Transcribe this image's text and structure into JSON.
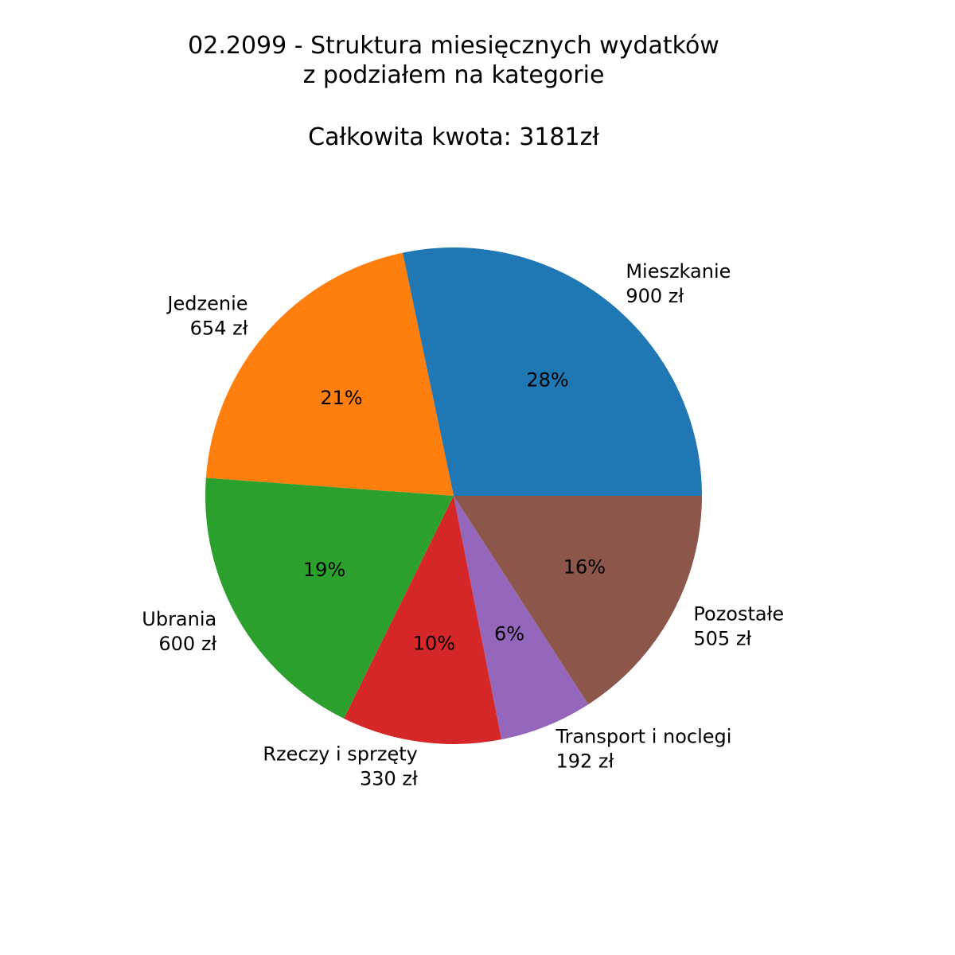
{
  "chart_data": {
    "type": "pie",
    "title_lines": [
      "02.2099 - Struktura miesięcznych wydatków",
      "z podziałem na kategorie",
      "",
      "Całkowita kwota: 3181zł"
    ],
    "start_angle_deg": 0,
    "direction": "counterclockwise",
    "slices": [
      {
        "name": "Mieszkanie",
        "amount_label": "900 zł",
        "value": 900,
        "pct_label": "28%",
        "color": "#1f77b4"
      },
      {
        "name": "Jedzenie",
        "amount_label": "654 zł",
        "value": 654,
        "pct_label": "21%",
        "color": "#ff7f0e"
      },
      {
        "name": "Ubrania",
        "amount_label": "600 zł",
        "value": 600,
        "pct_label": "19%",
        "color": "#2ca02c"
      },
      {
        "name": "Rzeczy i sprzęty",
        "amount_label": "330 zł",
        "value": 330,
        "pct_label": "10%",
        "color": "#d62728"
      },
      {
        "name": "Transport i noclegi",
        "amount_label": "192 zł",
        "value": 192,
        "pct_label": "6%",
        "color": "#9467bd"
      },
      {
        "name": "Pozostałe",
        "amount_label": "505 zł",
        "value": 505,
        "pct_label": "16%",
        "color": "#8c564b"
      }
    ]
  }
}
